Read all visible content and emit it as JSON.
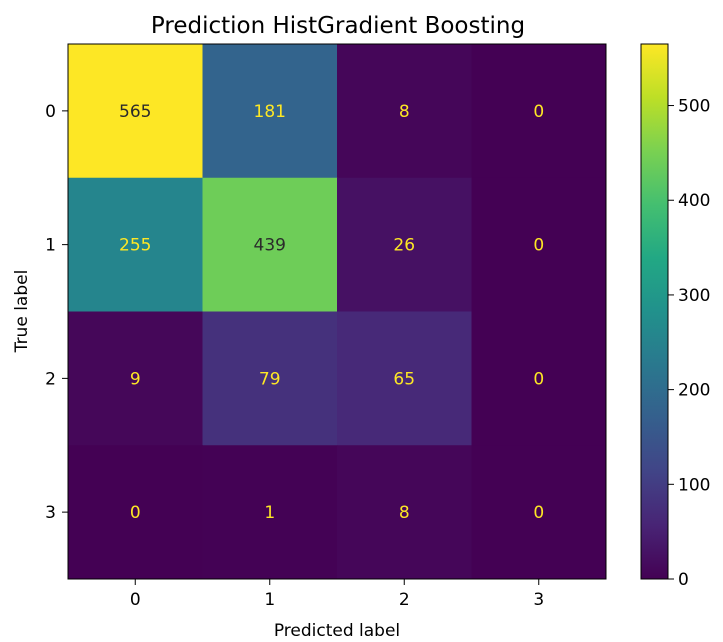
{
  "chart_data": {
    "type": "heatmap",
    "title": "Prediction HistGradient Boosting",
    "xlabel": "Predicted label",
    "ylabel": "True label",
    "x_categories": [
      "0",
      "1",
      "2",
      "3"
    ],
    "y_categories": [
      "0",
      "1",
      "2",
      "3"
    ],
    "values": [
      [
        565,
        181,
        8,
        0
      ],
      [
        255,
        439,
        26,
        0
      ],
      [
        9,
        79,
        65,
        0
      ],
      [
        0,
        1,
        8,
        0
      ]
    ],
    "colormap": "viridis",
    "value_range": [
      0,
      565
    ],
    "colorbar_ticks": [
      0,
      100,
      200,
      300,
      400,
      500
    ],
    "colorbar_tick_labels": [
      "0",
      "100",
      "200",
      "300",
      "400",
      "500"
    ],
    "text_color_on_dark": "#fde725",
    "text_color_on_light": "#2b2b2b",
    "grid": false
  }
}
